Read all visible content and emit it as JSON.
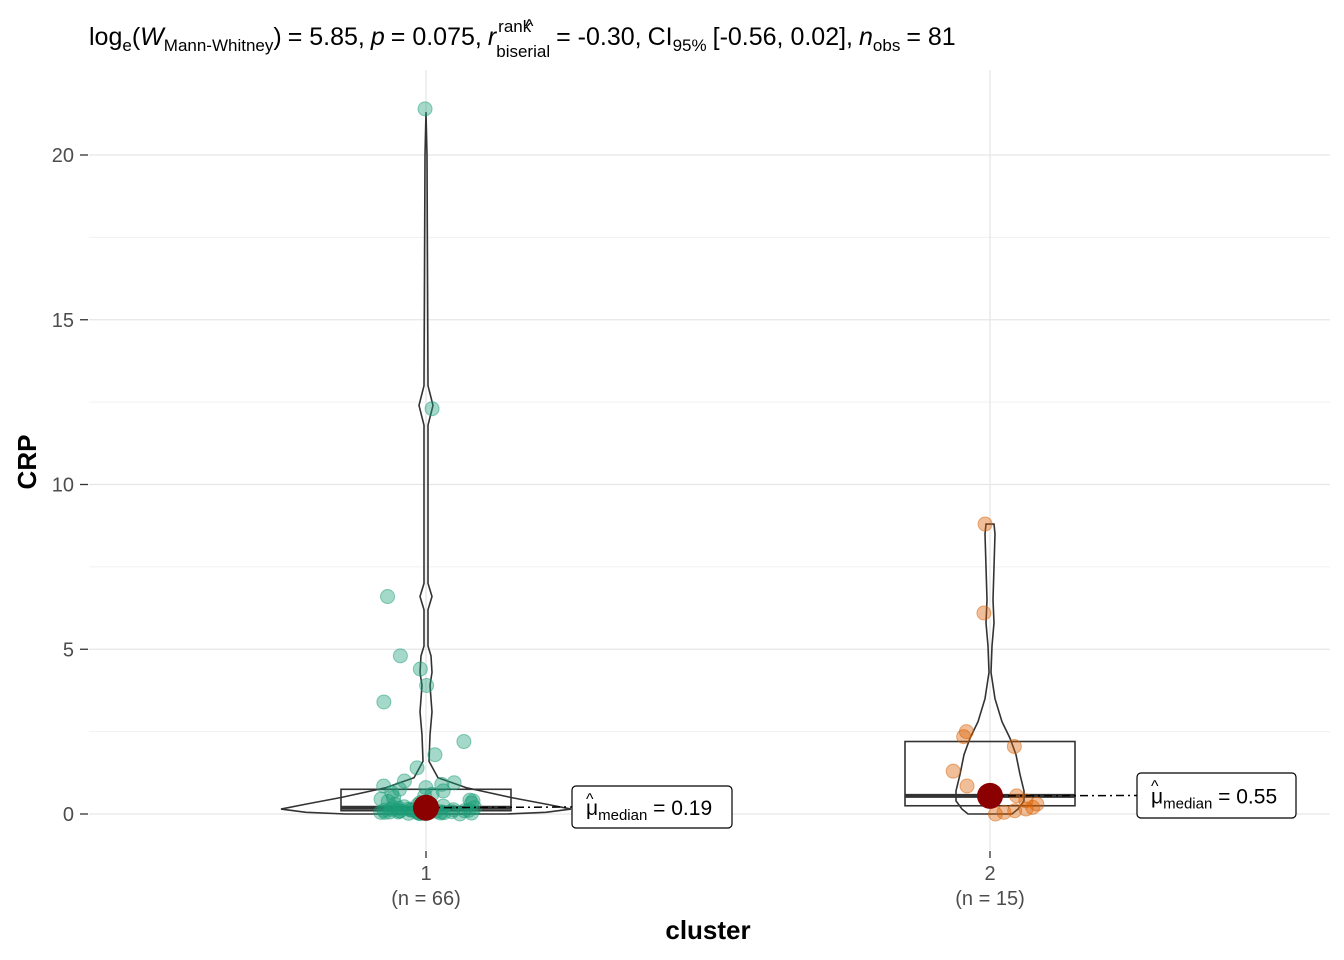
{
  "chart_data": {
    "type": "violin-box-scatter",
    "title": {
      "w_prefix": "log",
      "w_base": "e",
      "w_symbol": "W",
      "w_sub": "Mann-Whitney",
      "w_value": "= 5.85,",
      "p_symbol": "p",
      "p_value": "= 0.075,",
      "r_symbol": "r",
      "r_sup": "rank",
      "r_sub": "biserial",
      "r_value": "= -0.30,",
      "ci_symbol": "CI",
      "ci_sub": "95%",
      "ci_value": "[-0.56, 0.02],",
      "n_symbol": "n",
      "n_sub": "obs",
      "n_value": "= 81"
    },
    "xlabel": "cluster",
    "ylabel": "CRP",
    "ylim": [
      -1,
      22
    ],
    "yticks": [
      "0",
      "5",
      "10",
      "15",
      "20"
    ],
    "grid": true,
    "groups": [
      {
        "category": "1",
        "n_label": "(n = 66)",
        "color": "#1b9e77",
        "median": 0.19,
        "median_label": "= 0.19",
        "q1": 0.1,
        "q3": 0.75,
        "points": [
          21.4,
          12.3,
          6.6,
          4.8,
          4.4,
          3.9,
          3.4,
          2.2,
          1.8,
          1.4,
          1.0,
          0.95,
          0.9,
          0.85,
          0.8,
          0.75,
          0.7,
          0.65,
          0.6,
          0.55,
          0.5,
          0.45,
          0.42,
          0.4,
          0.38,
          0.35,
          0.33,
          0.3,
          0.28,
          0.26,
          0.24,
          0.22,
          0.2,
          0.19,
          0.18,
          0.17,
          0.16,
          0.15,
          0.14,
          0.13,
          0.12,
          0.12,
          0.11,
          0.11,
          0.1,
          0.1,
          0.09,
          0.09,
          0.08,
          0.08,
          0.07,
          0.07,
          0.06,
          0.06,
          0.05,
          0.05,
          0.05,
          0.04,
          0.04,
          0.03,
          0.03,
          0.02,
          0.02,
          0.01,
          0.01,
          0.0
        ]
      },
      {
        "category": "2",
        "n_label": "(n = 15)",
        "color": "#d95f02",
        "median": 0.55,
        "median_label": "= 0.55",
        "q1": 0.25,
        "q3": 2.2,
        "points": [
          8.8,
          6.1,
          2.5,
          2.35,
          2.05,
          1.3,
          0.85,
          0.55,
          0.4,
          0.3,
          0.2,
          0.15,
          0.1,
          0.05,
          0.0
        ]
      }
    ],
    "median_symbol": "μ",
    "median_sub": "median"
  }
}
